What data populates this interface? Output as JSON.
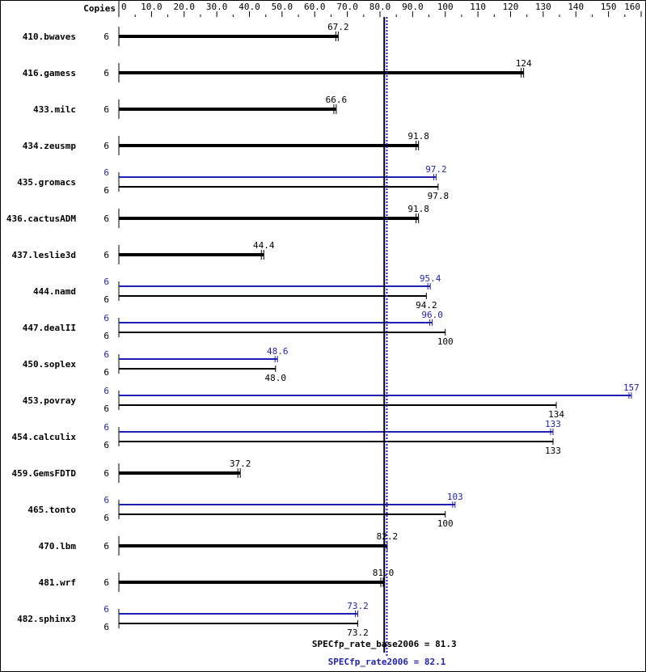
{
  "chart_data": {
    "type": "bar",
    "orientation": "horizontal",
    "copies_header": "Copies",
    "xlim": [
      0,
      160
    ],
    "ticks": [
      "0",
      "10.0",
      "20.0",
      "30.0",
      "40.0",
      "50.0",
      "60.0",
      "70.0",
      "80.0",
      "90.0",
      "100",
      "110",
      "120",
      "130",
      "140",
      "150",
      "160"
    ],
    "tick_values": [
      0,
      10,
      20,
      30,
      40,
      50,
      60,
      70,
      80,
      90,
      100,
      110,
      120,
      130,
      140,
      150,
      160
    ],
    "colors": {
      "base": "#000000",
      "peak": "#1f1fb4"
    },
    "benchmarks": [
      {
        "name": "410.bwaves",
        "base_copies": "6",
        "base": 67.2,
        "base_label": "67.2"
      },
      {
        "name": "416.gamess",
        "base_copies": "6",
        "base": 124,
        "base_label": "124"
      },
      {
        "name": "433.milc",
        "base_copies": "6",
        "base": 66.6,
        "base_label": "66.6"
      },
      {
        "name": "434.zeusmp",
        "base_copies": "6",
        "base": 91.8,
        "base_label": "91.8"
      },
      {
        "name": "435.gromacs",
        "peak_copies": "6",
        "peak": 97.2,
        "peak_label": "97.2",
        "base_copies": "6",
        "base": 97.8,
        "base_label": "97.8"
      },
      {
        "name": "436.cactusADM",
        "base_copies": "6",
        "base": 91.8,
        "base_label": "91.8"
      },
      {
        "name": "437.leslie3d",
        "base_copies": "6",
        "base": 44.4,
        "base_label": "44.4"
      },
      {
        "name": "444.namd",
        "peak_copies": "6",
        "peak": 95.4,
        "peak_label": "95.4",
        "base_copies": "6",
        "base": 94.2,
        "base_label": "94.2"
      },
      {
        "name": "447.dealII",
        "peak_copies": "6",
        "peak": 96.0,
        "peak_label": "96.0",
        "base_copies": "6",
        "base": 100,
        "base_label": "100"
      },
      {
        "name": "450.soplex",
        "peak_copies": "6",
        "peak": 48.6,
        "peak_label": "48.6",
        "base_copies": "6",
        "base": 48.0,
        "base_label": "48.0"
      },
      {
        "name": "453.povray",
        "peak_copies": "6",
        "peak": 157,
        "peak_label": "157",
        "base_copies": "6",
        "base": 134,
        "base_label": "134"
      },
      {
        "name": "454.calculix",
        "peak_copies": "6",
        "peak": 133,
        "peak_label": "133",
        "base_copies": "6",
        "base": 133,
        "base_label": "133"
      },
      {
        "name": "459.GemsFDTD",
        "base_copies": "6",
        "base": 37.2,
        "base_label": "37.2"
      },
      {
        "name": "465.tonto",
        "peak_copies": "6",
        "peak": 103,
        "peak_label": "103",
        "base_copies": "6",
        "base": 100,
        "base_label": "100"
      },
      {
        "name": "470.lbm",
        "base_copies": "6",
        "base": 82.2,
        "base_label": "82.2"
      },
      {
        "name": "481.wrf",
        "base_copies": "6",
        "base": 81.0,
        "base_label": "81.0"
      },
      {
        "name": "482.sphinx3",
        "peak_copies": "6",
        "peak": 73.2,
        "peak_label": "73.2",
        "base_copies": "6",
        "base": 73.2,
        "base_label": "73.2"
      }
    ],
    "base_mean": 81.3,
    "base_mean_label": "SPECfp_rate_base2006 = 81.3",
    "peak_mean": 82.1,
    "peak_mean_label": "SPECfp_rate2006 = 82.1"
  }
}
